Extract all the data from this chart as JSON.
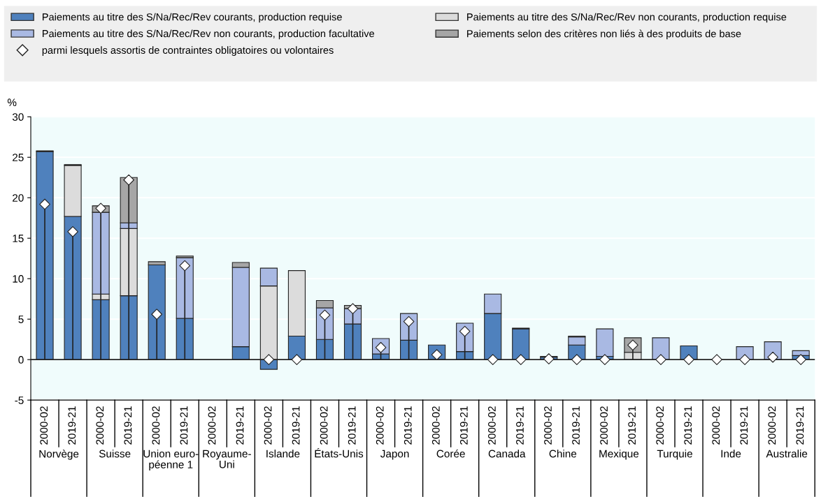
{
  "chart_data": {
    "type": "bar",
    "stacked": true,
    "ylabel": "%",
    "categories": [
      "2000-02",
      "2019-21",
      "2000-02",
      "2019-21",
      "2000-02",
      "2019-21",
      "2000-02",
      "2019-21",
      "2000-02",
      "2019-21",
      "2000-02",
      "2019-21",
      "2000-02",
      "2019-21",
      "2000-02",
      "2019-21",
      "2000-02",
      "2019-21",
      "2000-02",
      "2019-21",
      "2000-02",
      "2019-21",
      "2000-02",
      "2019-21",
      "2000-02",
      "2019-21",
      "2000-02",
      "2019-21"
    ],
    "annotations": [
      "Norvège",
      "Suisse",
      "Union euro-\npéenne 1",
      "Royaume-\nUni",
      "Islande",
      "États-Unis",
      "Japon",
      "Corée",
      "Canada",
      "Chine",
      "Mexique",
      "Turquie",
      "Inde",
      "Australie"
    ],
    "series": [
      {
        "name": "Paiements au titre des S/Na/Rec/Rev courants, production requise",
        "color": "#4f81bd",
        "values": [
          25.7,
          17.7,
          7.4,
          7.9,
          11.7,
          5.1,
          null,
          1.6,
          -1.2,
          2.9,
          2.5,
          4.4,
          0.7,
          2.4,
          1.8,
          1.0,
          5.7,
          3.8,
          0.3,
          1.8,
          0.4,
          null,
          null,
          1.7,
          null,
          null,
          null,
          0.5
        ]
      },
      {
        "name": "Paiements au titre des S/Na/Rec/Rev non courants, production requise",
        "color": "#dcdcdc",
        "values": [
          null,
          6.3,
          0.7,
          8.3,
          null,
          null,
          null,
          null,
          9.1,
          8.1,
          null,
          null,
          null,
          null,
          null,
          null,
          null,
          null,
          null,
          null,
          null,
          0.9,
          null,
          null,
          null,
          null,
          null,
          null
        ]
      },
      {
        "name": "Paiements au titre des S/Na/Rec/Rev non courants, production facultative",
        "color": "#a9b9e3",
        "values": [
          null,
          null,
          10.1,
          0.7,
          null,
          7.5,
          null,
          9.8,
          2.2,
          null,
          3.9,
          1.9,
          1.9,
          3.3,
          null,
          3.5,
          2.4,
          0.1,
          null,
          1.0,
          3.4,
          null,
          2.7,
          null,
          null,
          1.6,
          2.2,
          0.6
        ]
      },
      {
        "name": "Paiements selon des critères non liés à des produits de base",
        "color": "#a6a6a6",
        "values": [
          0.1,
          0.1,
          0.8,
          5.6,
          0.4,
          0.2,
          null,
          0.6,
          null,
          null,
          0.9,
          0.4,
          null,
          null,
          null,
          null,
          null,
          null,
          0.1,
          0.1,
          null,
          1.8,
          null,
          null,
          null,
          null,
          null,
          null
        ]
      },
      {
        "name": "parmi lesquels assortis de contraintes obligatoires ou volontaires",
        "type": "lollipop",
        "marker": "diamond",
        "color": "#ffffff",
        "values": [
          19.2,
          15.8,
          18.7,
          22.2,
          5.6,
          11.6,
          null,
          null,
          0,
          0,
          5.5,
          6.3,
          1.5,
          4.7,
          0.6,
          3.5,
          0,
          0,
          0.1,
          0,
          0,
          1.8,
          0,
          0,
          0,
          0,
          0.3,
          0
        ]
      }
    ],
    "ylim": [
      -5,
      30
    ],
    "yticks": [
      -5,
      0,
      5,
      10,
      15,
      20,
      25,
      30
    ],
    "grid": "y",
    "legend": "top"
  }
}
